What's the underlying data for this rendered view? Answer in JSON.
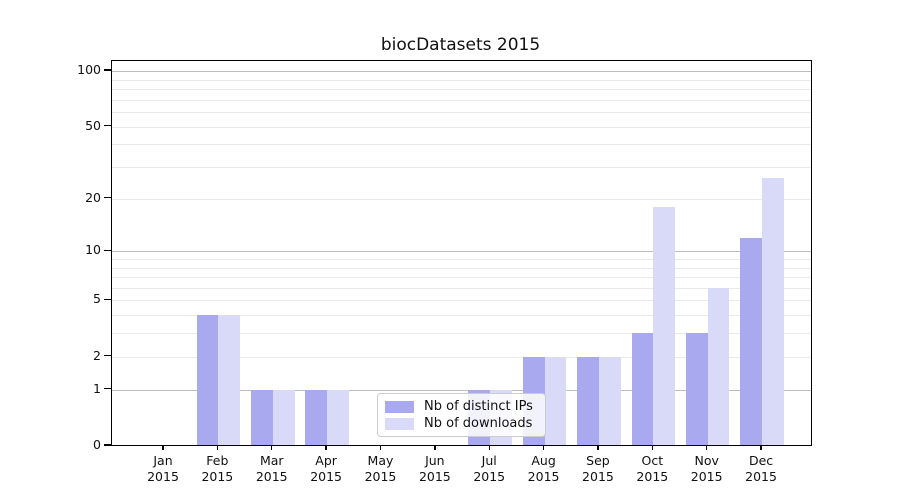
{
  "title": "biocDatasets 2015",
  "chart_data": {
    "type": "bar",
    "title": "biocDatasets 2015",
    "categories": [
      "Jan",
      "Feb",
      "Mar",
      "Apr",
      "May",
      "Jun",
      "Jul",
      "Aug",
      "Sep",
      "Oct",
      "Nov",
      "Dec"
    ],
    "category_year": "2015",
    "series": [
      {
        "name": "Nb of distinct IPs",
        "color": "#a9a9f0",
        "values": [
          0,
          4,
          1,
          1,
          0,
          0,
          1,
          2,
          2,
          3,
          3,
          12
        ]
      },
      {
        "name": "Nb of downloads",
        "color": "#d9d9f8",
        "values": [
          0,
          4,
          1,
          1,
          0,
          0,
          1,
          2,
          2,
          18,
          6,
          26
        ]
      }
    ],
    "yscale": "log(1+v)",
    "y_tick_labels": [
      0,
      1,
      2,
      5,
      10,
      20,
      50,
      100
    ],
    "y_major_gridlines": [
      1,
      10,
      100
    ],
    "y_minor_gridlines": [
      2,
      3,
      4,
      5,
      6,
      7,
      8,
      9,
      20,
      30,
      40,
      50,
      60,
      70,
      80,
      90
    ],
    "ylim": [
      0,
      113
    ],
    "grid": true,
    "legend_position": "lower center"
  },
  "colors": {
    "major_grid": "#bdbdbd",
    "minor_grid": "#eaeaea",
    "axis": "#000000",
    "text": "#111111",
    "legend_border": "#cccccc"
  }
}
